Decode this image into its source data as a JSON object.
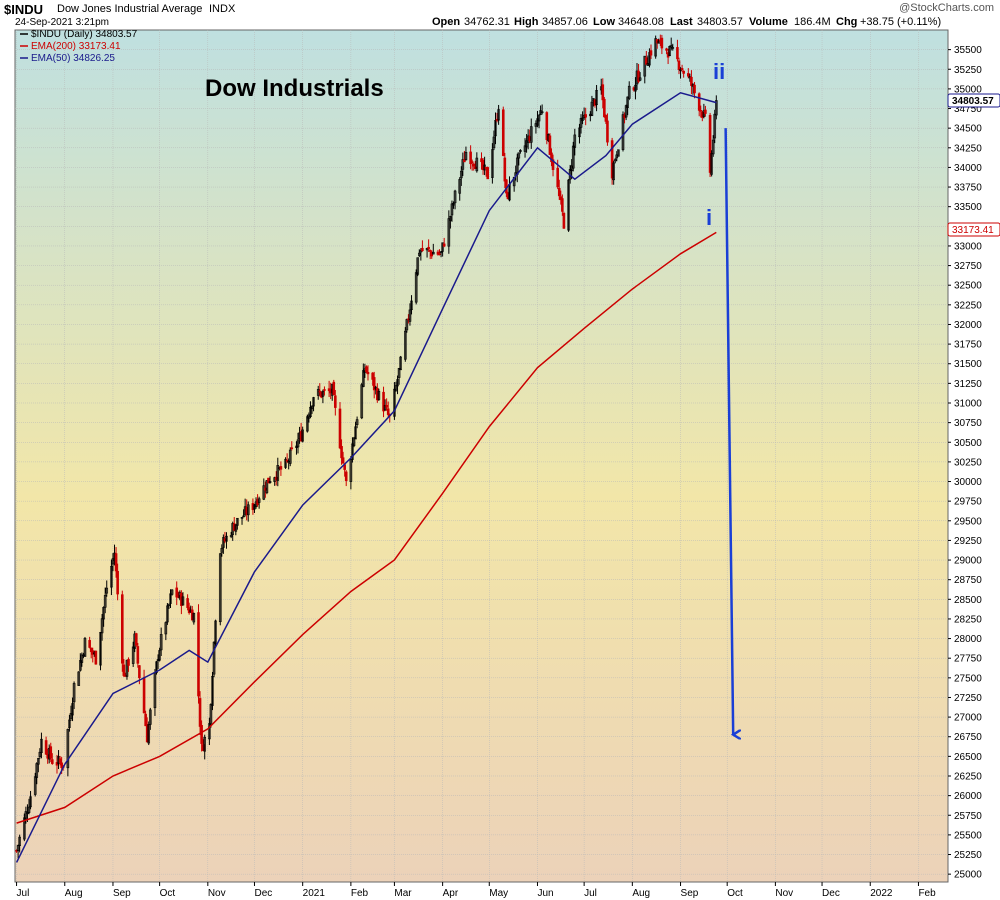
{
  "header": {
    "symbol": "$INDU",
    "name": "Dow Jones Industrial Average",
    "exchange": "INDX",
    "datetime": "24-Sep-2021 3:21pm",
    "open_label": "Open",
    "open_value": "34762.31",
    "high_label": "High",
    "high_value": "34857.06",
    "low_label": "Low",
    "low_value": "34648.08",
    "last_label": "Last",
    "last_value": "34803.57",
    "volume_label": "Volume",
    "volume_value": "186.4M",
    "chg_label": "Chg",
    "chg_value": "+38.75 (+0.11%)",
    "watermark": "@StockCharts.com"
  },
  "chart_data": {
    "type": "line",
    "title": "Dow Industrials",
    "background": {
      "top": "#bfe0e0",
      "middle": "#f2e6a8",
      "bottom": "#ecd2b9"
    },
    "ylim": [
      24900,
      35750
    ],
    "yticks": [
      25000,
      25250,
      25500,
      25750,
      26000,
      26250,
      26500,
      26750,
      27000,
      27250,
      27500,
      27750,
      28000,
      28250,
      28500,
      28750,
      29000,
      29250,
      29500,
      29750,
      30000,
      30250,
      30500,
      30750,
      31000,
      31250,
      31500,
      31750,
      32000,
      32250,
      32500,
      32750,
      33000,
      33250,
      33500,
      33750,
      34000,
      34250,
      34500,
      34750,
      35000,
      35250,
      35500
    ],
    "xlim": [
      "2020-06-30",
      "2022-02-20"
    ],
    "xticks": [
      {
        "date": "2020-07-01",
        "label": "Jul"
      },
      {
        "date": "2020-08-01",
        "label": "Aug"
      },
      {
        "date": "2020-09-01",
        "label": "Sep"
      },
      {
        "date": "2020-10-01",
        "label": "Oct"
      },
      {
        "date": "2020-11-01",
        "label": "Nov"
      },
      {
        "date": "2020-12-01",
        "label": "Dec"
      },
      {
        "date": "2021-01-01",
        "label": "2021"
      },
      {
        "date": "2021-02-01",
        "label": "Feb"
      },
      {
        "date": "2021-03-01",
        "label": "Mar"
      },
      {
        "date": "2021-04-01",
        "label": "Apr"
      },
      {
        "date": "2021-05-01",
        "label": "May"
      },
      {
        "date": "2021-06-01",
        "label": "Jun"
      },
      {
        "date": "2021-07-01",
        "label": "Jul"
      },
      {
        "date": "2021-08-01",
        "label": "Aug"
      },
      {
        "date": "2021-09-01",
        "label": "Sep"
      },
      {
        "date": "2021-10-01",
        "label": "Oct"
      },
      {
        "date": "2021-11-01",
        "label": "Nov"
      },
      {
        "date": "2021-12-01",
        "label": "Dec"
      },
      {
        "date": "2022-01-01",
        "label": "2022"
      },
      {
        "date": "2022-02-01",
        "label": "Feb"
      }
    ],
    "series": [
      {
        "name": "$INDU (Daily) 34803.57",
        "color": "#000000",
        "kind": "price",
        "points": [
          [
            "2020-07-01",
            25300
          ],
          [
            "2020-07-10",
            26000
          ],
          [
            "2020-07-17",
            26700
          ],
          [
            "2020-07-24",
            26450
          ],
          [
            "2020-07-31",
            26400
          ],
          [
            "2020-08-07",
            27400
          ],
          [
            "2020-08-14",
            27950
          ],
          [
            "2020-08-21",
            27750
          ],
          [
            "2020-08-28",
            28650
          ],
          [
            "2020-09-02",
            29100
          ],
          [
            "2020-09-08",
            27500
          ],
          [
            "2020-09-15",
            28000
          ],
          [
            "2020-09-23",
            26750
          ],
          [
            "2020-09-30",
            27800
          ],
          [
            "2020-10-09",
            28600
          ],
          [
            "2020-10-15",
            28500
          ],
          [
            "2020-10-23",
            28300
          ],
          [
            "2020-10-28",
            26600
          ],
          [
            "2020-11-02",
            26900
          ],
          [
            "2020-11-06",
            28300
          ],
          [
            "2020-11-09",
            29150
          ],
          [
            "2020-11-18",
            29450
          ],
          [
            "2020-11-30",
            29700
          ],
          [
            "2020-12-11",
            30050
          ],
          [
            "2020-12-21",
            30200
          ],
          [
            "2020-12-31",
            30600
          ],
          [
            "2021-01-08",
            31100
          ],
          [
            "2021-01-20",
            31150
          ],
          [
            "2021-01-29",
            29980
          ],
          [
            "2021-02-10",
            31450
          ],
          [
            "2021-02-26",
            30800
          ],
          [
            "2021-03-05",
            31500
          ],
          [
            "2021-03-17",
            32950
          ],
          [
            "2021-03-31",
            32900
          ],
          [
            "2021-04-16",
            34200
          ],
          [
            "2021-04-30",
            33900
          ],
          [
            "2021-05-07",
            34800
          ],
          [
            "2021-05-12",
            33600
          ],
          [
            "2021-05-20",
            34100
          ],
          [
            "2021-06-04",
            34750
          ],
          [
            "2021-06-18",
            33300
          ],
          [
            "2021-06-25",
            34400
          ],
          [
            "2021-07-12",
            35000
          ],
          [
            "2021-07-19",
            33950
          ],
          [
            "2021-07-30",
            34950
          ],
          [
            "2021-08-16",
            35600
          ],
          [
            "2021-08-27",
            35450
          ],
          [
            "2021-09-07",
            35100
          ],
          [
            "2021-09-17",
            34600
          ],
          [
            "2021-09-20",
            33950
          ],
          [
            "2021-09-24",
            34803
          ]
        ]
      },
      {
        "name": "EMA(200) 33173.41",
        "color": "#cc0000",
        "kind": "ema200",
        "points": [
          [
            "2020-07-01",
            25650
          ],
          [
            "2020-08-01",
            25850
          ],
          [
            "2020-09-01",
            26250
          ],
          [
            "2020-10-01",
            26500
          ],
          [
            "2020-11-01",
            26850
          ],
          [
            "2020-12-01",
            27450
          ],
          [
            "2021-01-01",
            28050
          ],
          [
            "2021-02-01",
            28600
          ],
          [
            "2021-03-01",
            29000
          ],
          [
            "2021-04-01",
            29850
          ],
          [
            "2021-05-01",
            30700
          ],
          [
            "2021-06-01",
            31450
          ],
          [
            "2021-07-01",
            31950
          ],
          [
            "2021-08-01",
            32450
          ],
          [
            "2021-09-01",
            32900
          ],
          [
            "2021-09-24",
            33173
          ]
        ]
      },
      {
        "name": "EMA(50) 34826.25",
        "color": "#1a1a8c",
        "kind": "ema50",
        "points": [
          [
            "2020-07-01",
            25150
          ],
          [
            "2020-08-01",
            26400
          ],
          [
            "2020-09-01",
            27300
          ],
          [
            "2020-10-01",
            27600
          ],
          [
            "2020-10-20",
            27850
          ],
          [
            "2020-11-01",
            27700
          ],
          [
            "2020-12-01",
            28850
          ],
          [
            "2021-01-01",
            29700
          ],
          [
            "2021-02-01",
            30300
          ],
          [
            "2021-03-01",
            30900
          ],
          [
            "2021-04-01",
            32200
          ],
          [
            "2021-05-01",
            33450
          ],
          [
            "2021-06-01",
            34250
          ],
          [
            "2021-06-25",
            33850
          ],
          [
            "2021-07-15",
            34150
          ],
          [
            "2021-08-01",
            34550
          ],
          [
            "2021-09-01",
            34950
          ],
          [
            "2021-09-24",
            34826
          ]
        ]
      }
    ],
    "axis_tags": {
      "price": "34803.57",
      "ema200": "33173.41"
    },
    "annotations": {
      "wave_i": "i",
      "wave_ii": "ii",
      "arrow_color": "#1a3fd6",
      "arrow_target": {
        "date": "2021-10-01",
        "value": 26700
      }
    }
  }
}
